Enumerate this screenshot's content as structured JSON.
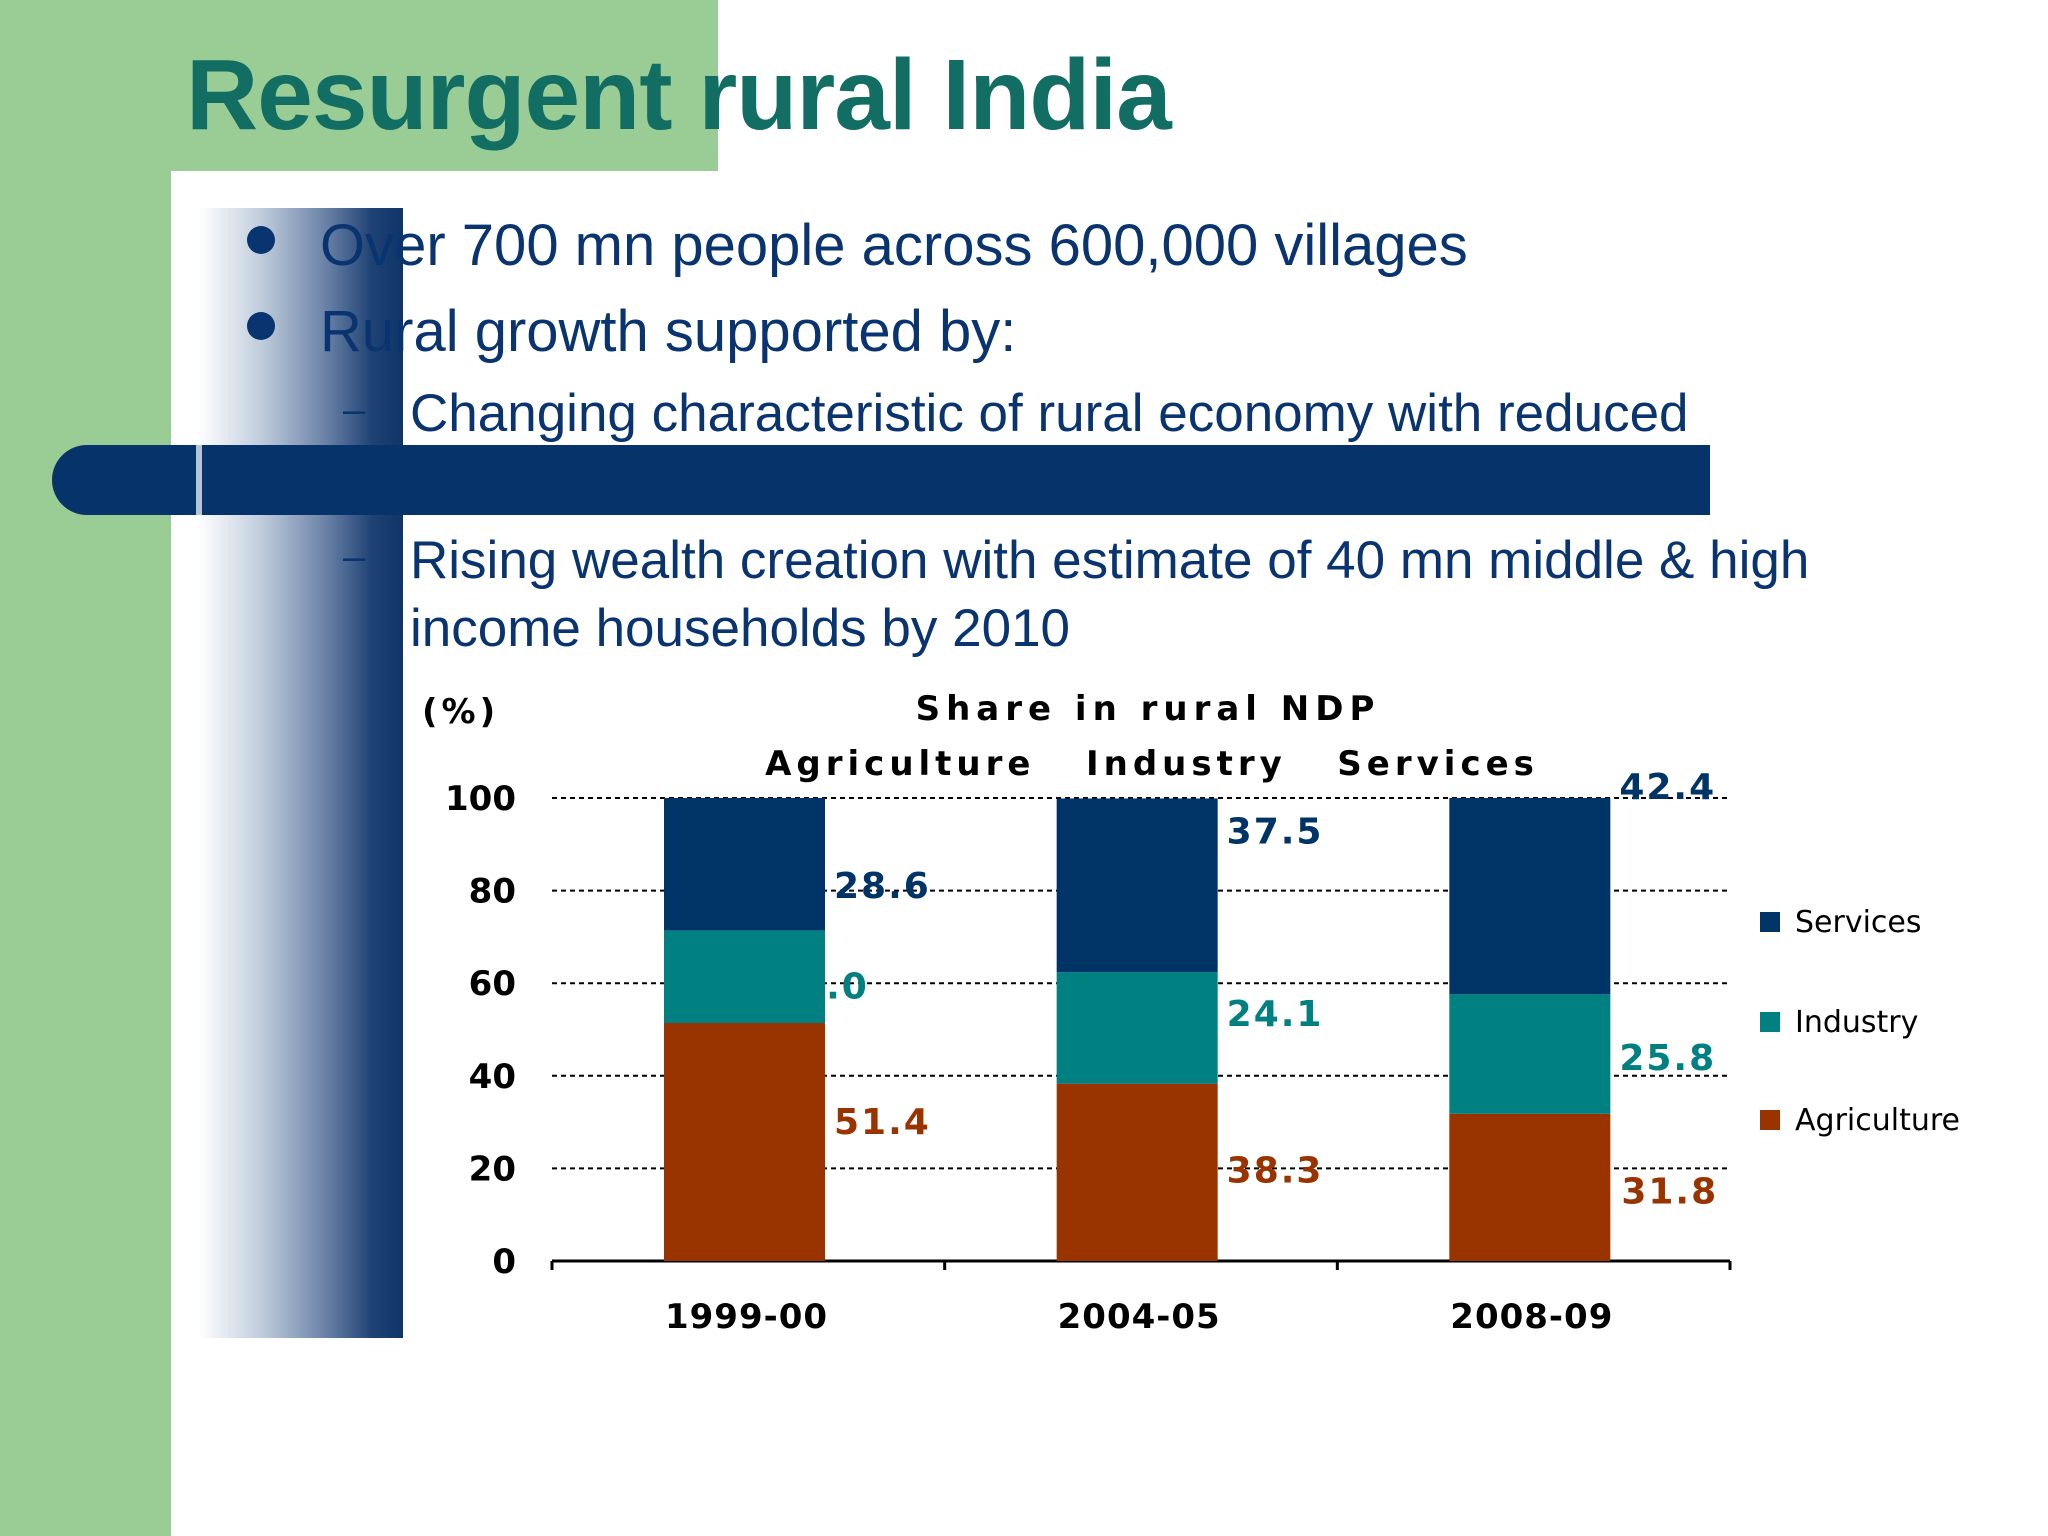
{
  "slide": {
    "title": "Resurgent rural India",
    "bullets": [
      "Over 700 mn people across 600,000 villages",
      "Rural growth supported by:"
    ],
    "sub_bullets": [
      "Changing characteristic of rural economy with reduced",
      "Rising wealth creation with estimate of 40 mn middle & high income households by 2010"
    ],
    "sub_bullet_lines": [
      [
        "Changing characteristic of rural economy with reduced"
      ],
      [
        "Rising wealth creation with estimate of 40 mn middle & high",
        "income households by 2010"
      ]
    ]
  },
  "colors": {
    "accent_green": "#9acd95",
    "title_teal": "#126d62",
    "navy": "#06336a",
    "text_navy": "#0a3470"
  },
  "chart_data": {
    "type": "bar",
    "stacked": true,
    "title": "Share in rural NDP",
    "subtitle": "Agriculture   Industry   Services",
    "ylabel": "(%)",
    "xlabel": "",
    "ylim": [
      0,
      100
    ],
    "yticks": [
      0,
      20,
      40,
      60,
      80,
      100
    ],
    "grid": true,
    "legend_position": "right",
    "categories": [
      "1999-00",
      "2004-05",
      "2008-09"
    ],
    "series": [
      {
        "name": "Agriculture",
        "color": "#993300",
        "values": [
          51.4,
          38.3,
          31.8
        ],
        "labels": [
          "51.4",
          "38.3",
          "31.8"
        ]
      },
      {
        "name": "Industry",
        "color": "#008080",
        "values": [
          20.0,
          24.1,
          25.8
        ],
        "labels": [
          "20.0",
          "24.1",
          "25.8"
        ]
      },
      {
        "name": "Services",
        "color": "#003366",
        "values": [
          28.6,
          37.5,
          42.4
        ],
        "labels": [
          "28.6",
          "37.5",
          "42.4"
        ]
      }
    ],
    "legend_order": [
      "Services",
      "Industry",
      "Agriculture"
    ]
  }
}
